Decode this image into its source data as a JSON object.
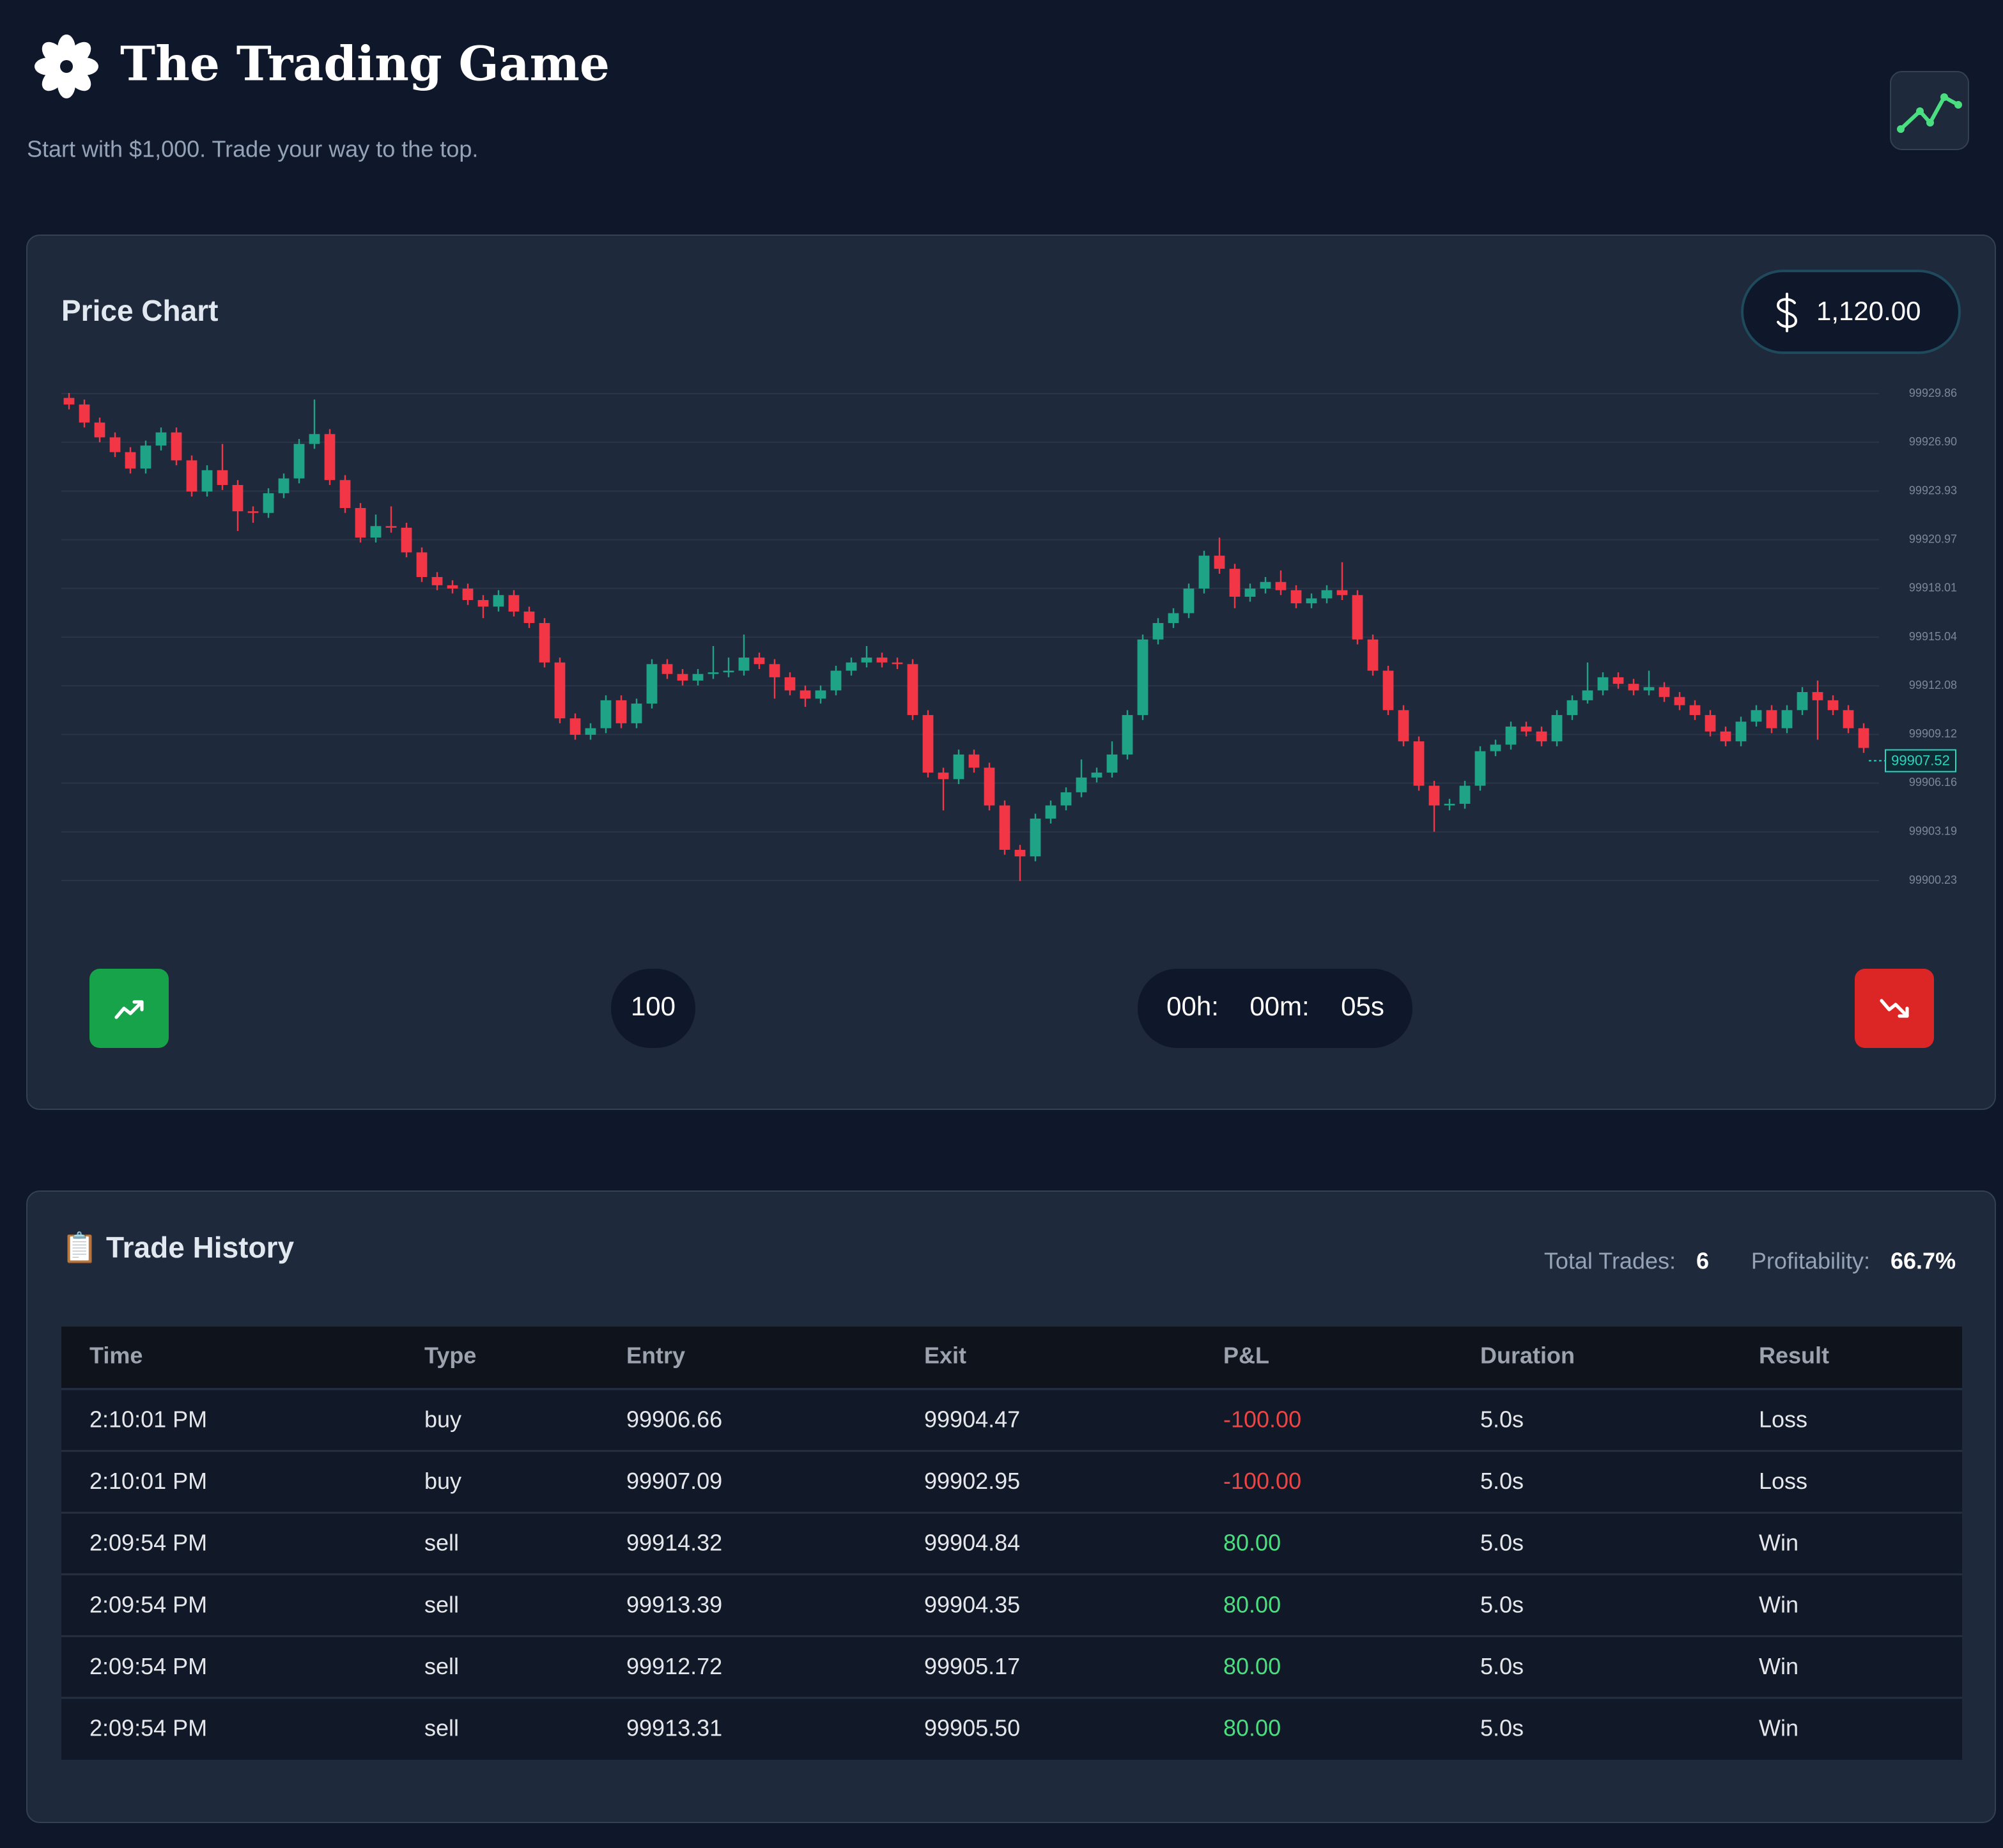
{
  "header": {
    "title": "The Trading Game",
    "subtitle": "Start with $1,000. Trade your way to the top."
  },
  "balance": "1,120.00",
  "chart_data": {
    "type": "candlestick",
    "title": "Price Chart",
    "open": [
      99929.6,
      99929.2,
      99928.1,
      99927.2,
      99926.3,
      99925.3,
      99926.7,
      99927.5,
      99925.8,
      99923.9,
      99925.2,
      99924.3,
      99922.7,
      99922.6,
      99923.8,
      99924.7,
      99926.8,
      99927.4,
      99924.6,
      99922.9,
      99921.1,
      99921.8,
      99921.7,
      99920.2,
      99918.7,
      99918.2,
      99918.0,
      99917.3,
      99916.9,
      99917.6,
      99916.6,
      99915.9,
      99913.5,
      99910.1,
      99909.1,
      99909.5,
      99911.2,
      99909.8,
      99911.0,
      99913.4,
      99912.8,
      99912.4,
      99912.8,
      99912.9,
      99913.0,
      99913.8,
      99913.4,
      99912.6,
      99911.8,
      99911.3,
      99911.8,
      99913.0,
      99913.5,
      99913.8,
      99913.5,
      99913.4,
      99910.3,
      99906.8,
      99906.4,
      99907.9,
      99907.1,
      99904.8,
      99902.1,
      99901.7,
      99904.0,
      99904.8,
      99905.6,
      99906.5,
      99906.8,
      99907.9,
      99910.3,
      99914.9,
      99915.9,
      99916.5,
      99918.0,
      99920.0,
      99919.2,
      99917.5,
      99918.0,
      99918.4,
      99917.9,
      99917.1,
      99917.4,
      99917.9,
      99917.6,
      99914.9,
      99913.0,
      99910.6,
      99908.7,
      99906.0,
      99904.8,
      99904.9,
      99906.0,
      99908.1,
      99908.5,
      99909.6,
      99909.3,
      99908.7,
      99910.3,
      99911.2,
      99911.8,
      99912.6,
      99912.2,
      99911.8,
      99912.0,
      99911.4,
      99910.9,
      99910.3,
      99909.3,
      99908.7,
      99909.9,
      99910.6,
      99909.5,
      99910.6,
      99911.7,
      99911.2,
      99910.6,
      99909.5
    ],
    "close": [
      99929.2,
      99928.1,
      99927.2,
      99926.3,
      99925.3,
      99926.7,
      99927.5,
      99925.8,
      99923.9,
      99925.2,
      99924.3,
      99922.7,
      99922.6,
      99923.8,
      99924.7,
      99926.8,
      99927.4,
      99924.6,
      99922.9,
      99921.1,
      99921.8,
      99921.7,
      99920.2,
      99918.7,
      99918.2,
      99918.0,
      99917.3,
      99916.9,
      99917.6,
      99916.6,
      99915.9,
      99913.5,
      99910.1,
      99909.1,
      99909.5,
      99911.2,
      99909.8,
      99911.0,
      99913.4,
      99912.8,
      99912.4,
      99912.8,
      99912.9,
      99913.0,
      99913.8,
      99913.4,
      99912.6,
      99911.8,
      99911.3,
      99911.8,
      99913.0,
      99913.5,
      99913.8,
      99913.5,
      99913.4,
      99910.3,
      99906.8,
      99906.4,
      99907.9,
      99907.1,
      99904.8,
      99902.1,
      99901.7,
      99904.0,
      99904.8,
      99905.6,
      99906.5,
      99906.8,
      99907.9,
      99910.3,
      99914.9,
      99915.9,
      99916.5,
      99918.0,
      99920.0,
      99919.2,
      99917.5,
      99918.0,
      99918.4,
      99917.9,
      99917.1,
      99917.4,
      99917.9,
      99917.6,
      99914.9,
      99913.0,
      99910.6,
      99908.7,
      99906.0,
      99904.8,
      99904.9,
      99906.0,
      99908.1,
      99908.5,
      99909.6,
      99909.3,
      99908.7,
      99910.3,
      99911.2,
      99911.8,
      99912.6,
      99912.2,
      99911.8,
      99912.0,
      99911.4,
      99910.9,
      99910.3,
      99909.3,
      99908.7,
      99909.9,
      99910.6,
      99909.5,
      99910.6,
      99911.7,
      99911.2,
      99910.6,
      99909.5,
      99908.3
    ],
    "high": [
      99929.9,
      99929.5,
      99928.4,
      99927.5,
      99926.6,
      99927.0,
      99927.8,
      99927.8,
      99926.1,
      99925.5,
      99926.8,
      99924.6,
      99923.0,
      99924.1,
      99925.0,
      99927.1,
      99929.5,
      99927.7,
      99924.9,
      99923.2,
      99922.5,
      99923.0,
      99922.0,
      99920.5,
      99919.0,
      99918.5,
      99918.3,
      99917.6,
      99917.9,
      99917.9,
      99916.9,
      99916.2,
      99913.8,
      99910.4,
      99909.8,
      99911.5,
      99911.5,
      99911.3,
      99913.7,
      99913.7,
      99913.1,
      99913.1,
      99914.5,
      99913.8,
      99915.2,
      99914.1,
      99913.7,
      99912.9,
      99912.1,
      99912.1,
      99913.3,
      99913.8,
      99914.5,
      99914.1,
      99913.8,
      99913.7,
      99910.6,
      99907.1,
      99908.2,
      99908.2,
      99907.4,
      99905.1,
      99902.4,
      99904.3,
      99905.1,
      99905.9,
      99907.6,
      99907.1,
      99908.7,
      99910.6,
      99915.2,
      99916.2,
      99916.8,
      99918.3,
      99920.3,
      99921.1,
      99919.5,
      99918.3,
      99918.7,
      99919.1,
      99918.2,
      99917.7,
      99918.2,
      99919.6,
      99917.9,
      99915.2,
      99913.3,
      99910.9,
      99909.0,
      99906.3,
      99905.2,
      99906.3,
      99908.4,
      99908.8,
      99909.9,
      99909.9,
      99909.6,
      99910.6,
      99911.5,
      99913.5,
      99912.9,
      99912.9,
      99912.5,
      99913.0,
      99912.3,
      99911.7,
      99911.2,
      99910.6,
      99909.6,
      99910.2,
      99910.9,
      99910.9,
      99910.9,
      99912.0,
      99912.4,
      99911.5,
      99910.9,
      99909.8
    ],
    "low": [
      99928.9,
      99927.8,
      99926.9,
      99926.0,
      99925.0,
      99925.0,
      99926.4,
      99925.5,
      99923.6,
      99923.6,
      99924.0,
      99921.5,
      99922.0,
      99922.3,
      99923.5,
      99924.4,
      99926.5,
      99924.3,
      99922.6,
      99920.8,
      99920.8,
      99921.4,
      99919.9,
      99918.4,
      99917.9,
      99917.7,
      99917.0,
      99916.2,
      99916.6,
      99916.3,
      99915.6,
      99913.2,
      99909.8,
      99908.8,
      99908.8,
      99909.2,
      99909.5,
      99909.5,
      99910.7,
      99912.5,
      99912.1,
      99912.1,
      99912.5,
      99912.6,
      99912.7,
      99913.1,
      99911.3,
      99911.5,
      99910.8,
      99911.0,
      99911.5,
      99912.7,
      99913.2,
      99913.2,
      99913.1,
      99910.0,
      99906.5,
      99904.5,
      99906.1,
      99906.8,
      99904.5,
      99901.8,
      99900.2,
      99901.4,
      99903.7,
      99904.5,
      99905.3,
      99906.2,
      99906.5,
      99907.6,
      99910.0,
      99914.6,
      99915.6,
      99916.2,
      99917.7,
      99918.9,
      99916.8,
      99917.2,
      99917.7,
      99917.6,
      99916.8,
      99916.8,
      99917.1,
      99917.3,
      99914.6,
      99912.7,
      99910.3,
      99908.4,
      99905.7,
      99903.2,
      99904.5,
      99904.6,
      99905.7,
      99907.8,
      99908.2,
      99909.0,
      99908.4,
      99908.4,
      99910.0,
      99911.0,
      99911.5,
      99911.9,
      99911.5,
      99911.5,
      99911.1,
      99910.6,
      99910.0,
      99909.0,
      99908.4,
      99908.4,
      99909.6,
      99909.2,
      99909.2,
      99910.3,
      99908.8,
      99910.3,
      99909.2,
      99908.0
    ],
    "up_color": "#1fa386",
    "down_color": "#f23645",
    "ylim": [
      99900.23,
      99929.86
    ],
    "yticks": [
      99929.86,
      {
        "value": 99926.9,
        "label": "99926.90"
      },
      99923.93,
      99920.97,
      99918.01,
      99915.04,
      99912.08,
      99909.12,
      99906.16,
      99903.19,
      99900.23
    ],
    "grid": true,
    "current_price": 99907.52,
    "current_price_color": "#2dd4bf"
  },
  "controls": {
    "amount": "100",
    "timer": [
      "00h:",
      "00m:",
      "05s"
    ]
  },
  "trade_history": {
    "title": "📋 Trade History",
    "stats": [
      {
        "label": "Total Trades:",
        "value": "6"
      },
      {
        "label": "Profitability:",
        "value": "66.7%"
      }
    ],
    "columns": [
      "Time",
      "Type",
      "Entry",
      "Exit",
      "P&L",
      "Duration",
      "Result"
    ],
    "rows": [
      [
        "2:10:01 PM",
        "buy",
        "99906.66",
        "99904.47",
        "-100.00",
        "5.0s",
        "Loss"
      ],
      [
        "2:10:01 PM",
        "buy",
        "99907.09",
        "99902.95",
        "-100.00",
        "5.0s",
        "Loss"
      ],
      [
        "2:09:54 PM",
        "sell",
        "99914.32",
        "99904.84",
        "80.00",
        "5.0s",
        "Win"
      ],
      [
        "2:09:54 PM",
        "sell",
        "99913.39",
        "99904.35",
        "80.00",
        "5.0s",
        "Win"
      ],
      [
        "2:09:54 PM",
        "sell",
        "99912.72",
        "99905.17",
        "80.00",
        "5.0s",
        "Win"
      ],
      [
        "2:09:54 PM",
        "sell",
        "99913.31",
        "99905.50",
        "80.00",
        "5.0s",
        "Win"
      ]
    ],
    "loss_color": "#ef4444",
    "win_color": "#4ade80"
  }
}
